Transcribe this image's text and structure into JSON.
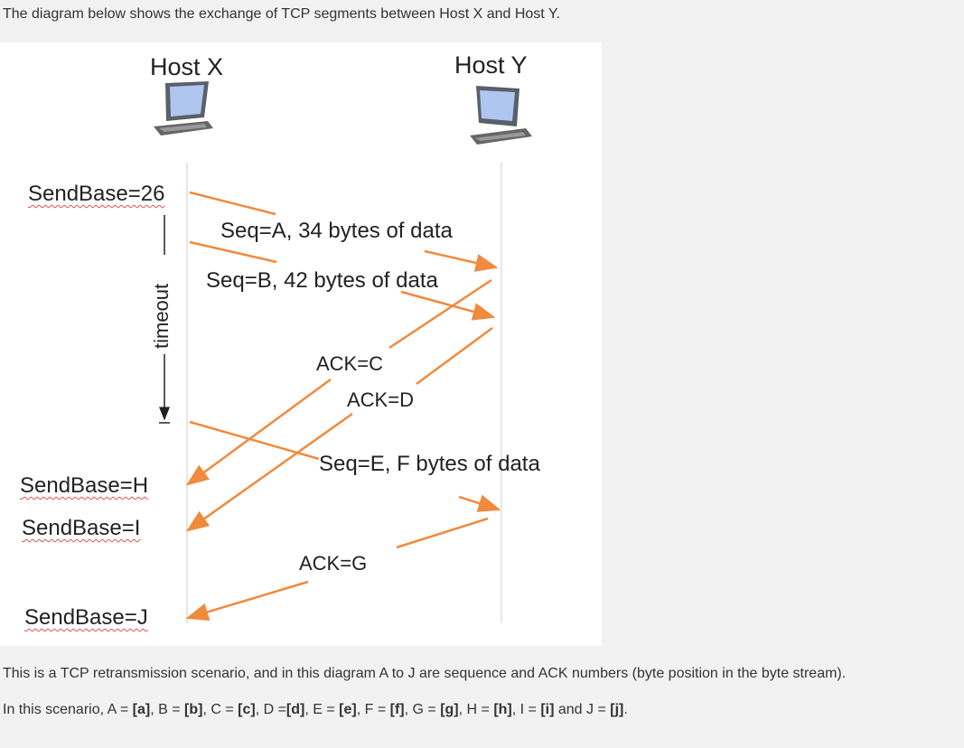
{
  "intro_text": "The diagram below shows the exchange of TCP segments between Host X and Host Y.",
  "diagram": {
    "host_x": "Host X",
    "host_y": "Host Y",
    "sendbase_26": "SendBase=26",
    "timeout": "timeout",
    "seg_a": "Seq=A, 34 bytes of data",
    "seg_b": "Seq=B, 42 bytes of data",
    "ack_c": "ACK=C",
    "ack_d": "ACK=D",
    "seg_e": "Seq=E,  F bytes of data",
    "sendbase_h": "SendBase=H",
    "sendbase_i": "SendBase=I",
    "ack_g": "ACK=G",
    "sendbase_j": "SendBase=J",
    "arrow_color": "#f08a3c"
  },
  "paragraph1": "This is a TCP retransmission scenario, and in this diagram A to J are sequence and ACK numbers (byte position in the byte stream).",
  "paragraph2": {
    "prefix": "In this scenario, A = ",
    "a": "[a]",
    "sep_b": ", B = ",
    "b": "[b]",
    "sep_c": ", C = ",
    "c": "[c]",
    "sep_d": ", D =",
    "d": "[d]",
    "sep_e": ", E = ",
    "e": "[e]",
    "sep_f": ", F = ",
    "f": "[f]",
    "sep_g": ", G = ",
    "g": "[g]",
    "sep_h": ", H = ",
    "h": "[h]",
    "sep_i": ", I = ",
    "i": "[i]",
    "sep_j": " and J = ",
    "j": "[j]",
    "suffix": "."
  }
}
